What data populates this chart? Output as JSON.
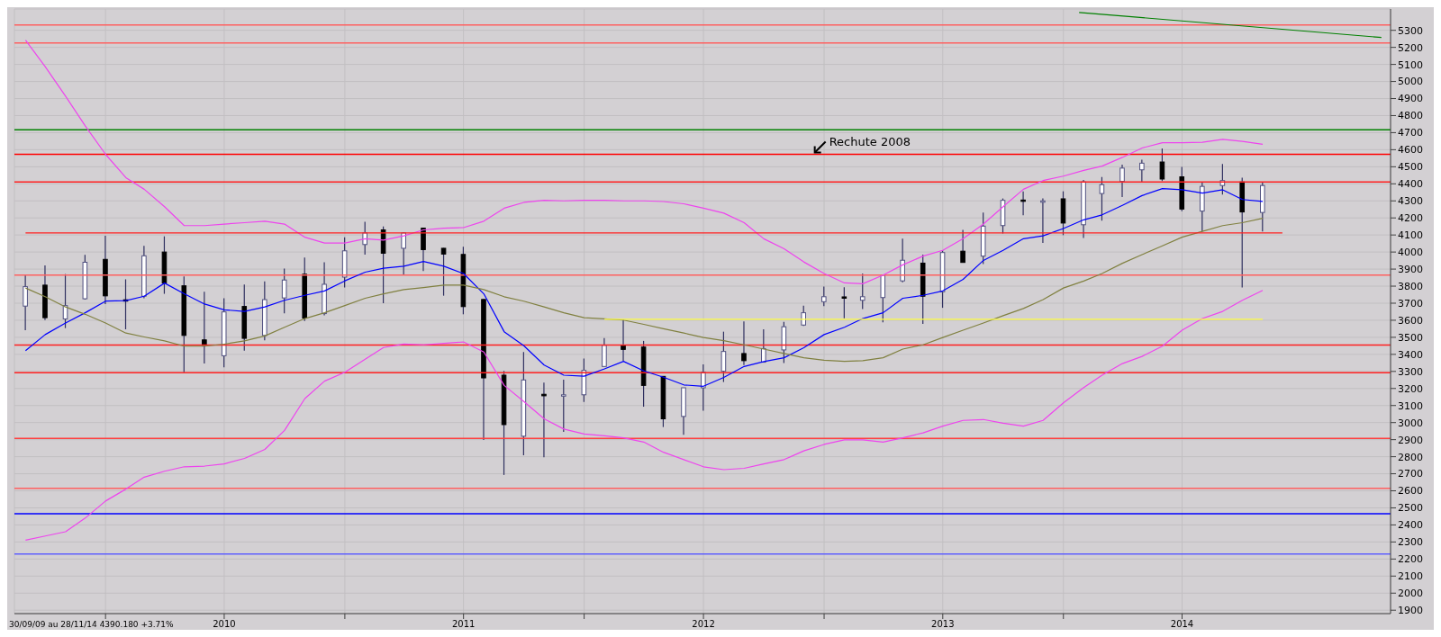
{
  "chart_data": {
    "type": "candlestick",
    "x": [
      "2009-09",
      "2009-10",
      "2009-11",
      "2009-12",
      "2010-01",
      "2010-02",
      "2010-03",
      "2010-04",
      "2010-05",
      "2010-06",
      "2010-07",
      "2010-08",
      "2010-09",
      "2010-10",
      "2010-11",
      "2010-12",
      "2011-01",
      "2011-02",
      "2011-03",
      "2011-04",
      "2011-05",
      "2011-06",
      "2011-07",
      "2011-08",
      "2011-09",
      "2011-10",
      "2011-11",
      "2011-12",
      "2012-01",
      "2012-02",
      "2012-03",
      "2012-04",
      "2012-05",
      "2012-06",
      "2012-07",
      "2012-08",
      "2012-09",
      "2012-10",
      "2012-11",
      "2012-12",
      "2013-01",
      "2013-02",
      "2013-03",
      "2013-04",
      "2013-05",
      "2013-06",
      "2013-07",
      "2013-08",
      "2013-09",
      "2013-10",
      "2013-11",
      "2013-12",
      "2014-01",
      "2014-02",
      "2014-03",
      "2014-04",
      "2014-05",
      "2014-06",
      "2014-07",
      "2014-08",
      "2014-09",
      "2014-10",
      "2014-11"
    ],
    "ohlc": [
      [
        3683,
        3865,
        3542,
        3797
      ],
      [
        3806,
        3922,
        3601,
        3615
      ],
      [
        3608,
        3871,
        3554,
        3686
      ],
      [
        3726,
        3983,
        3721,
        3940
      ],
      [
        3957,
        4095,
        3695,
        3743
      ],
      [
        3720,
        3840,
        3547,
        3715
      ],
      [
        3741,
        4036,
        3729,
        3978
      ],
      [
        4000,
        4092,
        3755,
        3819
      ],
      [
        3802,
        3857,
        3295,
        3511
      ],
      [
        3485,
        3767,
        3346,
        3451
      ],
      [
        3392,
        3729,
        3324,
        3649
      ],
      [
        3681,
        3809,
        3422,
        3494
      ],
      [
        3511,
        3828,
        3482,
        3721
      ],
      [
        3731,
        3903,
        3640,
        3836
      ],
      [
        3870,
        3968,
        3596,
        3613
      ],
      [
        3639,
        3940,
        3629,
        3811
      ],
      [
        3853,
        4087,
        3792,
        4007
      ],
      [
        4044,
        4177,
        3985,
        4112
      ],
      [
        4130,
        4150,
        3700,
        3993
      ],
      [
        4022,
        4115,
        3869,
        4112
      ],
      [
        4140,
        4142,
        3888,
        4014
      ],
      [
        4022,
        4024,
        3744,
        3988
      ],
      [
        3986,
        4031,
        3635,
        3680
      ],
      [
        3722,
        3724,
        2898,
        3262
      ],
      [
        3278,
        3303,
        2693,
        2988
      ],
      [
        2920,
        3414,
        2809,
        3250
      ],
      [
        3166,
        3235,
        2797,
        3157
      ],
      [
        3155,
        3252,
        2945,
        3163
      ],
      [
        3163,
        3376,
        3121,
        3306
      ],
      [
        3329,
        3496,
        3329,
        3453
      ],
      [
        3451,
        3605,
        3363,
        3429
      ],
      [
        3443,
        3479,
        3093,
        3218
      ],
      [
        3271,
        3271,
        2974,
        3022
      ],
      [
        3036,
        3204,
        2928,
        3204
      ],
      [
        3204,
        3341,
        3070,
        3295
      ],
      [
        3301,
        3533,
        3238,
        3417
      ],
      [
        3405,
        3593,
        3337,
        3363
      ],
      [
        3354,
        3547,
        3354,
        3434
      ],
      [
        3426,
        3591,
        3349,
        3562
      ],
      [
        3572,
        3686,
        3567,
        3644
      ],
      [
        3709,
        3797,
        3683,
        3738
      ],
      [
        3737,
        3794,
        3611,
        3734
      ],
      [
        3717,
        3874,
        3666,
        3738
      ],
      [
        3733,
        3864,
        3588,
        3864
      ],
      [
        3831,
        4078,
        3823,
        3952
      ],
      [
        3935,
        3985,
        3579,
        3741
      ],
      [
        3767,
        4010,
        3673,
        3997
      ],
      [
        4005,
        4130,
        3939,
        3939
      ],
      [
        3976,
        4232,
        3930,
        4152
      ],
      [
        4155,
        4314,
        4109,
        4303
      ],
      [
        4305,
        4356,
        4215,
        4300
      ],
      [
        4296,
        4314,
        4053,
        4300
      ],
      [
        4312,
        4356,
        4099,
        4170
      ],
      [
        4160,
        4423,
        4083,
        4411
      ],
      [
        4343,
        4440,
        4184,
        4395
      ],
      [
        4414,
        4513,
        4322,
        4492
      ],
      [
        4482,
        4542,
        4407,
        4521
      ],
      [
        4528,
        4607,
        4416,
        4428
      ],
      [
        4441,
        4499,
        4240,
        4252
      ],
      [
        4240,
        4411,
        4121,
        4385
      ],
      [
        4390,
        4516,
        4337,
        4419
      ],
      [
        4411,
        4436,
        3792,
        4235
      ],
      [
        4232,
        4411,
        4121,
        4390
      ]
    ],
    "series": [
      {
        "type": "line",
        "color": "#0000ff",
        "values": [
          3422,
          3516,
          3584,
          3644,
          3712,
          3715,
          3741,
          3818,
          3755,
          3695,
          3661,
          3652,
          3678,
          3717,
          3746,
          3772,
          3831,
          3882,
          3905,
          3917,
          3945,
          3917,
          3874,
          3755,
          3533,
          3451,
          3337,
          3278,
          3272,
          3315,
          3359,
          3303,
          3266,
          3221,
          3213,
          3265,
          3329,
          3358,
          3380,
          3439,
          3516,
          3559,
          3610,
          3644,
          3729,
          3746,
          3772,
          3840,
          3951,
          4010,
          4078,
          4095,
          4138,
          4189,
          4218,
          4274,
          4331,
          4372,
          4365,
          4346,
          4365,
          4308,
          4297
        ]
      },
      {
        "type": "line",
        "color": "#808040",
        "values": [
          3789,
          3738,
          3678,
          3635,
          3584,
          3525,
          3502,
          3479,
          3448,
          3448,
          3460,
          3479,
          3508,
          3559,
          3610,
          3644,
          3686,
          3729,
          3755,
          3780,
          3792,
          3806,
          3806,
          3780,
          3738,
          3712,
          3678,
          3644,
          3615,
          3608,
          3601,
          3576,
          3550,
          3525,
          3499,
          3480,
          3456,
          3431,
          3405,
          3380,
          3366,
          3359,
          3363,
          3380,
          3431,
          3456,
          3499,
          3542,
          3584,
          3627,
          3669,
          3721,
          3789,
          3830,
          3874,
          3934,
          3985,
          4036,
          4087,
          4121,
          4155,
          4172,
          4198
        ]
      },
      {
        "type": "line",
        "color": "#ee44ee",
        "values": [
          5242,
          5087,
          4914,
          4740,
          4573,
          4436,
          4368,
          4266,
          4155,
          4155,
          4164,
          4172,
          4181,
          4164,
          4087,
          4053,
          4053,
          4078,
          4070,
          4095,
          4130,
          4140,
          4143,
          4181,
          4257,
          4291,
          4303,
          4300,
          4303,
          4303,
          4300,
          4300,
          4296,
          4283,
          4257,
          4228,
          4172,
          4078,
          4019,
          3942,
          3874,
          3819,
          3814,
          3865,
          3925,
          3976,
          4010,
          4078,
          4164,
          4266,
          4368,
          4419,
          4445,
          4479,
          4504,
          4555,
          4610,
          4641,
          4641,
          4644,
          4661,
          4649,
          4632
        ]
      },
      {
        "type": "line",
        "color": "#ee44ee",
        "values": [
          2311,
          2335,
          2360,
          2440,
          2540,
          2610,
          2680,
          2715,
          2741,
          2745,
          2758,
          2790,
          2843,
          2954,
          3141,
          3243,
          3295,
          3371,
          3440,
          3461,
          3456,
          3465,
          3473,
          3414,
          3218,
          3124,
          3022,
          2962,
          2933,
          2923,
          2911,
          2886,
          2826,
          2783,
          2741,
          2724,
          2732,
          2758,
          2783,
          2834,
          2872,
          2899,
          2899,
          2886,
          2911,
          2940,
          2979,
          3013,
          3018,
          2996,
          2979,
          3013,
          3116,
          3205,
          3278,
          3346,
          3388,
          3448,
          3542,
          3610,
          3652,
          3717,
          3775
        ]
      },
      {
        "type": "line",
        "color": "#008000",
        "x": [
          "2014-01-25",
          "2015-05-01"
        ],
        "values": [
          5405,
          5258
        ]
      },
      {
        "type": "line",
        "color": "#ffff40",
        "x": [
          "2012-02",
          "2014-11"
        ],
        "values": [
          3606,
          3606
        ]
      },
      {
        "type": "line",
        "color": "#ff2020",
        "x": [
          "2009-09",
          "2014-12"
        ],
        "values": [
          4112,
          4112
        ]
      }
    ],
    "ref_lines": [
      {
        "axis": "y",
        "value": 5332,
        "color": "#ff6060"
      },
      {
        "axis": "y",
        "value": 5226,
        "color": "#ff6060"
      },
      {
        "axis": "y",
        "value": 4717,
        "color": "#008000"
      },
      {
        "axis": "y",
        "value": 4573,
        "color": "#ff0000"
      },
      {
        "axis": "y",
        "value": 4411,
        "color": "#ff2020"
      },
      {
        "axis": "y",
        "value": 3865,
        "color": "#ff6060"
      },
      {
        "axis": "y",
        "value": 3455,
        "color": "#ff2020"
      },
      {
        "axis": "y",
        "value": 3293,
        "color": "#ff2020"
      },
      {
        "axis": "y",
        "value": 2908,
        "color": "#ff4040"
      },
      {
        "axis": "y",
        "value": 2615,
        "color": "#ff6060"
      },
      {
        "axis": "y",
        "value": 2465,
        "color": "#0000ff"
      },
      {
        "axis": "y",
        "value": 2230,
        "color": "#6060ff"
      }
    ],
    "annotations": [
      "30/09/09 au 28/11/14 4390.180 +3.71%",
      {
        "text": "Rechute 2008",
        "x": "2012-12-15",
        "y": 4573
      }
    ],
    "xlim": [
      "2009-08-15",
      "2015-05-15"
    ],
    "xticks": [
      {
        "value": "2010-01",
        "label": null
      },
      {
        "value": "2010-07",
        "label": "2010"
      },
      {
        "value": "2011-01",
        "label": null
      },
      {
        "value": "2011-07",
        "label": "2011"
      },
      {
        "value": "2012-01",
        "label": null
      },
      {
        "value": "2012-07",
        "label": "2012"
      },
      {
        "value": "2013-01",
        "label": null
      },
      {
        "value": "2013-07",
        "label": "2013"
      },
      {
        "value": "2014-01",
        "label": null
      },
      {
        "value": "2014-07",
        "label": "2014"
      }
    ],
    "ylim": [
      1880,
      5425
    ],
    "yticks": [
      1900,
      2000,
      2100,
      2200,
      2300,
      2400,
      2500,
      2600,
      2700,
      2800,
      2900,
      3000,
      3100,
      3200,
      3300,
      3400,
      3500,
      3600,
      3700,
      3800,
      3900,
      4000,
      4100,
      4200,
      4300,
      4400,
      4500,
      4600,
      4700,
      4800,
      4900,
      5000,
      5100,
      5200,
      5300
    ],
    "grid": true
  }
}
